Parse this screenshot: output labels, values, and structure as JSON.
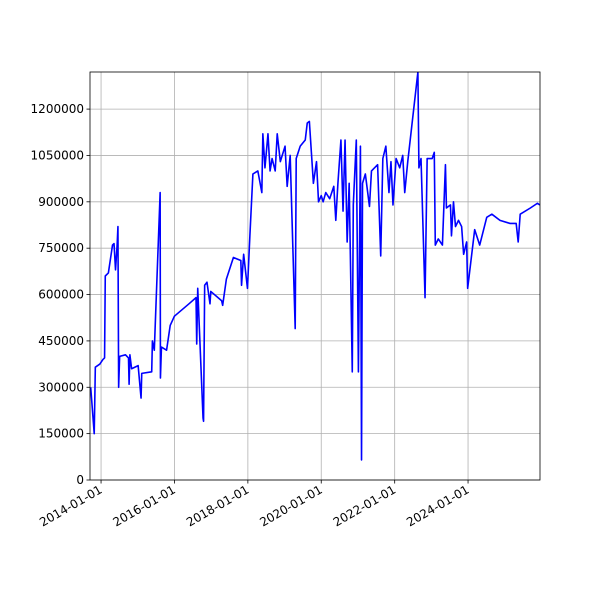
{
  "chart_data": {
    "type": "line",
    "x": [
      "2013-09-20",
      "2013-10-25",
      "2013-11-05",
      "2013-12-20",
      "2014-01-20",
      "2014-02-05",
      "2014-02-12",
      "2014-03-15",
      "2014-04-25",
      "2014-05-10",
      "2014-05-25",
      "2014-06-10",
      "2014-06-18",
      "2014-06-25",
      "2014-07-05",
      "2014-09-01",
      "2014-10-01",
      "2014-10-07",
      "2014-10-15",
      "2014-11-01",
      "2015-01-05",
      "2015-02-03",
      "2015-02-10",
      "2015-05-20",
      "2015-05-27",
      "2015-06-15",
      "2015-08-12",
      "2015-08-15",
      "2015-08-25",
      "2015-10-15",
      "2015-11-20",
      "2016-01-01",
      "2016-05-25",
      "2016-08-03",
      "2016-08-10",
      "2016-08-20",
      "2016-10-12",
      "2016-10-17",
      "2016-10-28",
      "2016-11-20",
      "2016-12-20",
      "2016-12-28",
      "2017-04-15",
      "2017-04-25",
      "2017-06-01",
      "2017-08-10",
      "2017-10-23",
      "2017-10-30",
      "2017-11-20",
      "2017-12-28",
      "2018-01-21",
      "2018-02-20",
      "2018-04-10",
      "2018-05-20",
      "2018-05-30",
      "2018-06-20",
      "2018-07-20",
      "2018-08-10",
      "2018-08-30",
      "2018-09-30",
      "2018-10-20",
      "2018-11-20",
      "2019-01-06",
      "2019-01-27",
      "2019-02-26",
      "2019-04-17",
      "2019-04-27",
      "2019-06-06",
      "2019-07-26",
      "2019-08-15",
      "2019-09-05",
      "2019-09-25",
      "2019-10-15",
      "2019-11-15",
      "2019-12-05",
      "2020-01-01",
      "2020-01-20",
      "2020-02-15",
      "2020-03-25",
      "2020-05-05",
      "2020-05-25",
      "2020-06-15",
      "2020-07-15",
      "2020-08-05",
      "2020-08-25",
      "2020-09-15",
      "2020-10-05",
      "2020-11-05",
      "2020-11-15",
      "2020-12-15",
      "2021-01-05",
      "2021-01-25",
      "2021-02-05",
      "2021-02-15",
      "2021-03-15",
      "2021-04-25",
      "2021-05-15",
      "2021-07-15",
      "2021-08-15",
      "2021-09-05",
      "2021-10-05",
      "2021-11-05",
      "2021-11-25",
      "2021-12-15",
      "2022-01-15",
      "2022-02-20",
      "2022-03-22",
      "2022-04-11",
      "2022-05-11",
      "2022-08-20",
      "2022-08-30",
      "2022-09-20",
      "2022-10-30",
      "2022-11-20",
      "2023-01-09",
      "2023-01-30",
      "2023-02-09",
      "2023-03-11",
      "2023-04-21",
      "2023-05-21",
      "2023-05-31",
      "2023-07-10",
      "2023-07-20",
      "2023-08-09",
      "2023-08-29",
      "2023-09-28",
      "2023-10-29",
      "2023-11-18",
      "2023-12-18",
      "2023-12-28",
      "2024-03-07",
      "2024-04-26",
      "2024-07-05",
      "2024-08-25",
      "2024-11-14",
      "2025-02-22",
      "2025-04-24",
      "2025-05-14",
      "2025-06-03",
      "2025-09-12",
      "2025-11-20",
      "2025-12-16"
    ],
    "series": [
      {
        "name": "value",
        "color": "blue",
        "values": [
          300000,
          150000,
          365000,
          375000,
          390000,
          395000,
          660000,
          670000,
          760000,
          765000,
          680000,
          760000,
          820000,
          300000,
          400000,
          405000,
          395000,
          310000,
          405000,
          360000,
          370000,
          265000,
          345000,
          350000,
          450000,
          420000,
          930000,
          330000,
          430000,
          420000,
          500000,
          530000,
          570000,
          590000,
          440000,
          620000,
          200000,
          190000,
          630000,
          640000,
          570000,
          610000,
          580000,
          565000,
          650000,
          720000,
          710000,
          630000,
          730000,
          620000,
          790000,
          990000,
          1000000,
          930000,
          1120000,
          1010000,
          1120000,
          1000000,
          1040000,
          1000000,
          1120000,
          1030000,
          1080000,
          950000,
          1050000,
          490000,
          1040000,
          1080000,
          1100000,
          1155000,
          1160000,
          1060000,
          960000,
          1030000,
          900000,
          920000,
          900000,
          930000,
          910000,
          950000,
          840000,
          960000,
          1100000,
          870000,
          1100000,
          770000,
          960000,
          350000,
          890000,
          1100000,
          350000,
          1080000,
          65000,
          960000,
          990000,
          885000,
          1000000,
          1020000,
          725000,
          1040000,
          1080000,
          930000,
          1030000,
          890000,
          1040000,
          1010000,
          1050000,
          930000,
          1030000,
          1320000,
          1010000,
          1040000,
          590000,
          1040000,
          1040000,
          1060000,
          760000,
          780000,
          760000,
          1020000,
          880000,
          890000,
          790000,
          900000,
          820000,
          840000,
          820000,
          730000,
          770000,
          620000,
          810000,
          760000,
          850000,
          860000,
          840000,
          830000,
          830000,
          770000,
          860000,
          880000,
          895000,
          890000
        ]
      }
    ],
    "xlim": [
      "2013-09-13",
      "2025-12-17"
    ],
    "xticks": [
      "2014-01-01",
      "2016-01-01",
      "2018-01-01",
      "2020-01-01",
      "2022-01-01",
      "2024-01-01"
    ],
    "ylim": [
      0,
      1320000
    ],
    "yticks": [
      0,
      150000,
      300000,
      450000,
      600000,
      750000,
      900000,
      1050000,
      1200000
    ],
    "grid": true
  }
}
